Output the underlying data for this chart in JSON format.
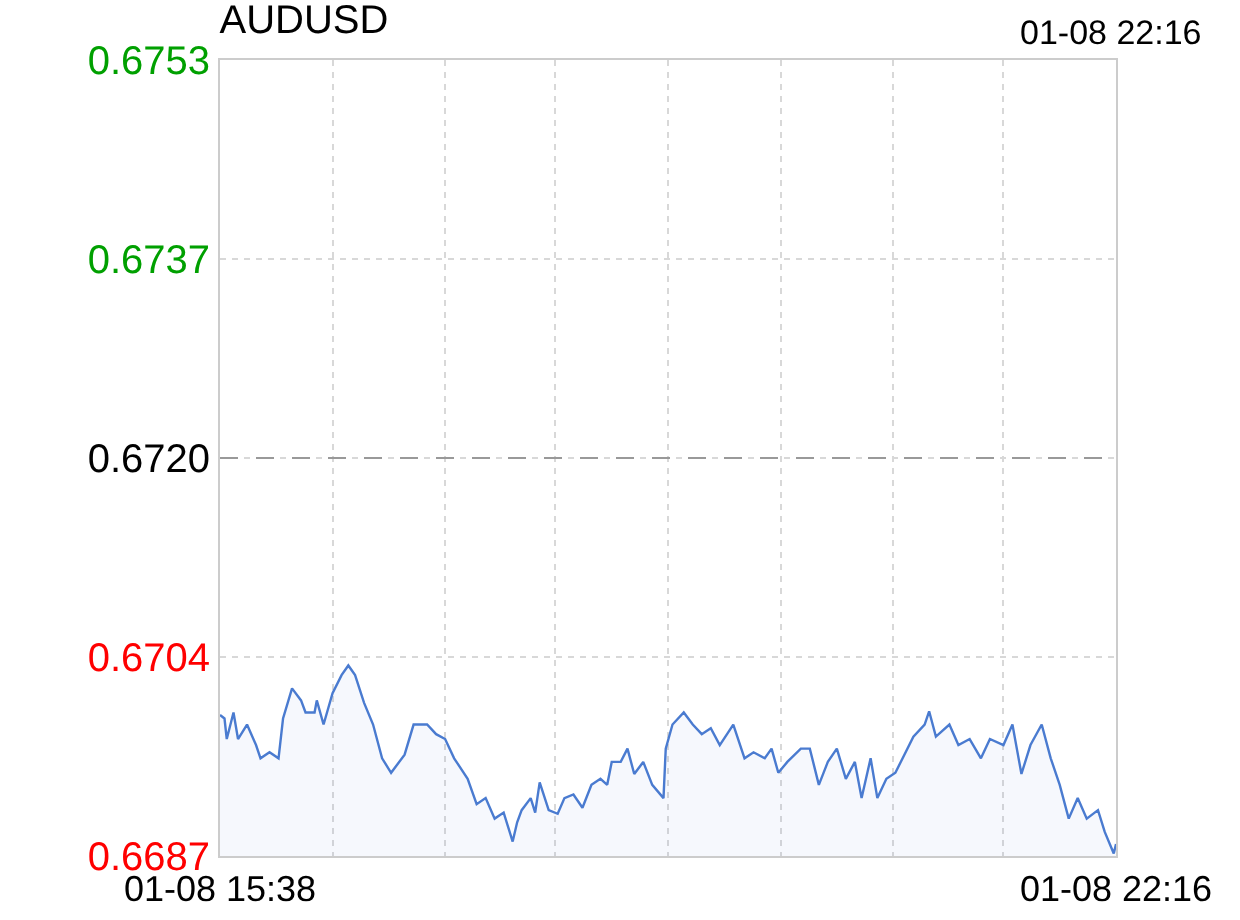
{
  "chart_data": {
    "type": "area",
    "title": "AUDUSD",
    "subtitle": "01-08 22:16",
    "x": [
      "--01-08T15:38",
      "--01-08T15:40",
      "--01-08T15:41",
      "--01-08T15:44",
      "--01-08T15:46",
      "--01-08T15:50",
      "--01-08T15:54",
      "--01-08T15:56",
      "--01-08T16:00",
      "--01-08T16:04",
      "--01-08T16:06",
      "--01-08T16:10",
      "--01-08T16:14",
      "--01-08T16:16",
      "--01-08T16:20",
      "--01-08T16:21",
      "--01-08T16:24",
      "--01-08T16:28",
      "--01-08T16:32",
      "--01-08T16:35",
      "--01-08T16:38",
      "--01-08T16:42",
      "--01-08T16:46",
      "--01-08T16:50",
      "--01-08T16:54",
      "--01-08T17:00",
      "--01-08T17:04",
      "--01-08T17:10",
      "--01-08T17:14",
      "--01-08T17:18",
      "--01-08T17:22",
      "--01-08T17:28",
      "--01-08T17:32",
      "--01-08T17:36",
      "--01-08T17:40",
      "--01-08T17:44",
      "--01-08T17:48",
      "--01-08T17:50",
      "--01-08T17:52",
      "--01-08T17:56",
      "--01-08T17:58",
      "--01-08T18:00",
      "--01-08T18:04",
      "--01-08T18:08",
      "--01-08T18:11",
      "--01-08T18:15",
      "--01-08T18:19",
      "--01-08T18:23",
      "--01-08T18:27",
      "--01-08T18:30",
      "--01-08T18:32",
      "--01-08T18:36",
      "--01-08T18:39",
      "--01-08T18:42",
      "--01-08T18:46",
      "--01-08T18:50",
      "--01-08T18:55",
      "--01-08T18:56",
      "--01-08T18:59",
      "--01-08T19:04",
      "--01-08T19:08",
      "--01-08T19:12",
      "--01-08T19:16",
      "--01-08T19:20",
      "--01-08T19:26",
      "--01-08T19:31",
      "--01-08T19:35",
      "--01-08T19:40",
      "--01-08T19:43",
      "--01-08T19:46",
      "--01-08T19:50",
      "--01-08T19:56",
      "--01-08T20:00",
      "--01-08T20:04",
      "--01-08T20:08",
      "--01-08T20:12",
      "--01-08T20:16",
      "--01-08T20:20",
      "--01-08T20:23",
      "--01-08T20:27",
      "--01-08T20:30",
      "--01-08T20:34",
      "--01-08T20:38",
      "--01-08T20:42",
      "--01-08T20:46",
      "--01-08T20:51",
      "--01-08T20:53",
      "--01-08T20:56",
      "--01-08T21:02",
      "--01-08T21:06",
      "--01-08T21:11",
      "--01-08T21:16",
      "--01-08T21:20",
      "--01-08T21:26",
      "--01-08T21:30",
      "--01-08T21:34",
      "--01-08T21:38",
      "--01-08T21:43",
      "--01-08T21:47",
      "--01-08T21:51",
      "--01-08T21:55",
      "--01-08T21:59",
      "--01-08T22:03",
      "--01-08T22:08",
      "--01-08T22:11",
      "--01-08T22:15",
      "--01-08T22:16"
    ],
    "series": [
      {
        "color": "#4a7bd0",
        "values": [
          0.66987,
          0.66984,
          0.66967,
          0.66989,
          0.66967,
          0.66979,
          0.66962,
          0.66951,
          0.66956,
          0.66951,
          0.66984,
          0.67009,
          0.66999,
          0.66989,
          0.66989,
          0.66999,
          0.66979,
          0.67005,
          0.6702,
          0.67028,
          0.6702,
          0.66997,
          0.66979,
          0.66951,
          0.66939,
          0.66954,
          0.66979,
          0.66979,
          0.66971,
          0.66967,
          0.66951,
          0.66934,
          0.66913,
          0.66918,
          0.66901,
          0.66906,
          0.66882,
          0.66898,
          0.66908,
          0.66918,
          0.66906,
          0.66931,
          0.66908,
          0.66905,
          0.66918,
          0.66921,
          0.6691,
          0.66929,
          0.66934,
          0.66929,
          0.66948,
          0.66948,
          0.66959,
          0.66938,
          0.66948,
          0.66929,
          0.66918,
          0.66959,
          0.66979,
          0.66989,
          0.66979,
          0.66971,
          0.66976,
          0.66962,
          0.66979,
          0.66951,
          0.66956,
          0.66951,
          0.66959,
          0.66939,
          0.66948,
          0.66959,
          0.66959,
          0.66929,
          0.66948,
          0.66959,
          0.66934,
          0.66948,
          0.66918,
          0.66951,
          0.66918,
          0.66934,
          0.66939,
          0.66954,
          0.66969,
          0.66979,
          0.6699,
          0.66969,
          0.66979,
          0.66962,
          0.66967,
          0.66951,
          0.66967,
          0.66962,
          0.66979,
          0.66938,
          0.66962,
          0.66979,
          0.66951,
          0.66929,
          0.66901,
          0.66918,
          0.66901,
          0.66908,
          0.6689,
          0.66872,
          0.6688
        ]
      }
    ],
    "xlim": [
      "--01-08T15:38",
      "--01-08T22:16"
    ],
    "xticks": [
      {
        "value": "--01-08T15:38",
        "label": "01-08 15:38"
      },
      {
        "value": "--01-08T16:28",
        "label": null
      },
      {
        "value": "--01-08T17:18",
        "label": null
      },
      {
        "value": "--01-08T18:07",
        "label": null
      },
      {
        "value": "--01-08T18:57",
        "label": null
      },
      {
        "value": "--01-08T19:47",
        "label": null
      },
      {
        "value": "--01-08T20:37",
        "label": null
      },
      {
        "value": "--01-08T21:26",
        "label": null
      },
      {
        "value": "--01-08T22:16",
        "label": "01-08 22:16"
      }
    ],
    "ylim": [
      0.6687,
      0.6753
    ],
    "yticks": [
      0.6687,
      {
        "value": 0.67035,
        "label": "0.6704"
      },
      {
        "value": 0.672,
        "label": "0.6720"
      },
      {
        "value": 0.67365,
        "label": "0.6737"
      },
      0.6753
    ],
    "ref_lines": [
      {
        "axis": "y",
        "value": 0.672,
        "color": "#999999",
        "line_style": "dashed"
      }
    ],
    "grid": true,
    "legend": false
  }
}
